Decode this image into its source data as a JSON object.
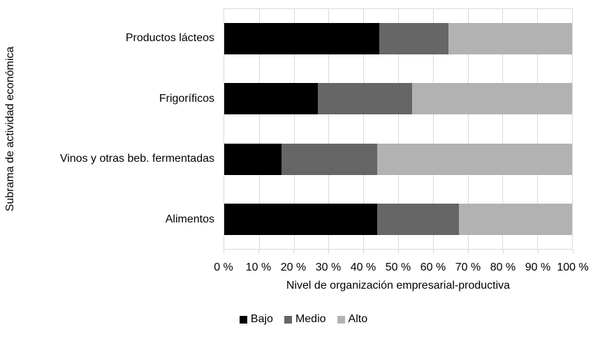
{
  "chart_data": {
    "type": "bar",
    "orientation": "horizontal",
    "stacked": true,
    "units": "percent",
    "categories": [
      "Productos lácteos",
      "Frigoríficos",
      "Vinos y otras beb. fermentadas",
      "Alimentos"
    ],
    "series": [
      {
        "name": "Bajo",
        "color": "#000000",
        "values": [
          44.5,
          27.0,
          16.5,
          44.0
        ]
      },
      {
        "name": "Medio",
        "color": "#666666",
        "values": [
          20.0,
          27.0,
          27.5,
          23.5
        ]
      },
      {
        "name": "Alto",
        "color": "#b2b2b2",
        "values": [
          35.5,
          46.0,
          56.0,
          32.5
        ]
      }
    ],
    "xlabel": "Nivel de organización empresarial-productiva",
    "ylabel": "Subrama de actividad económica",
    "x_ticks": [
      "0 %",
      "10 %",
      "20 %",
      "30 %",
      "40 %",
      "50 %",
      "60 %",
      "70 %",
      "80 %",
      "90 %",
      "100 %"
    ],
    "xlim": [
      0,
      100
    ],
    "grid": "vertical",
    "gridline_color": "#d9d9d9",
    "plot_border_color": "#d9d9d9",
    "legend_position": "bottom",
    "legend": [
      "Bajo",
      "Medio",
      "Alto"
    ]
  }
}
